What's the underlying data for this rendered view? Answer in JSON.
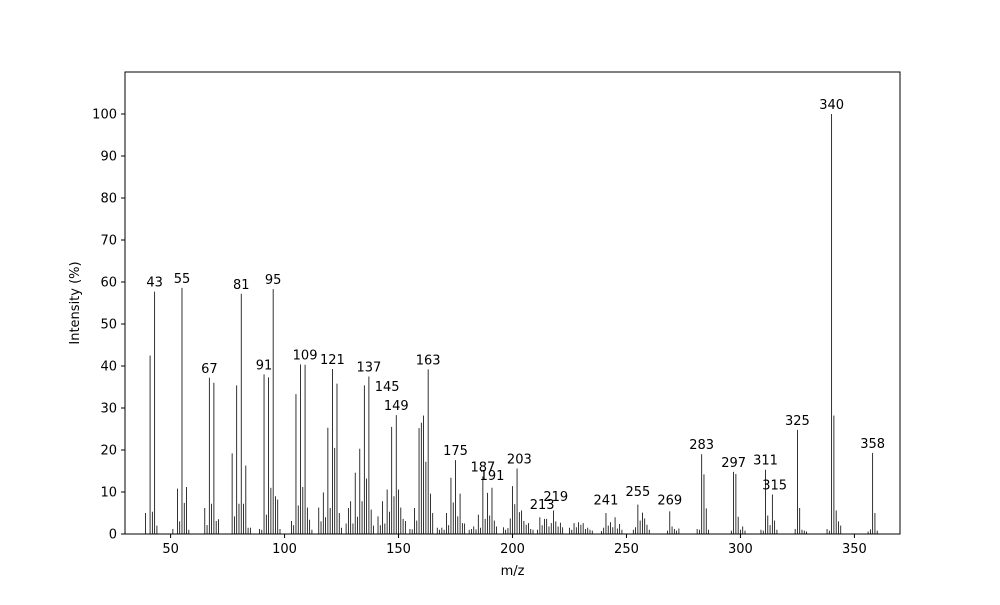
{
  "chart_data": {
    "type": "bar",
    "title": "",
    "xlabel": "m/z",
    "ylabel": "Intensity (%)",
    "xlim": [
      30,
      370
    ],
    "ylim": [
      0,
      110
    ],
    "xticks": [
      50,
      100,
      150,
      200,
      250,
      300,
      350
    ],
    "yticks": [
      0,
      10,
      20,
      30,
      40,
      50,
      60,
      70,
      80,
      90,
      100
    ],
    "grid": false,
    "bar_color": "#000000",
    "peaks": [
      [
        39,
        5
      ],
      [
        41,
        42.5
      ],
      [
        42,
        5.3
      ],
      [
        43,
        57.7
      ],
      [
        44,
        2
      ],
      [
        51,
        1.2
      ],
      [
        53,
        10.8
      ],
      [
        54,
        3
      ],
      [
        55,
        58.6
      ],
      [
        56,
        7.4
      ],
      [
        57,
        11.2
      ],
      [
        58,
        1
      ],
      [
        65,
        6.2
      ],
      [
        66,
        2.1
      ],
      [
        67,
        37.2
      ],
      [
        68,
        7.2
      ],
      [
        69,
        36
      ],
      [
        70,
        3.1
      ],
      [
        71,
        3.5
      ],
      [
        77,
        19.2
      ],
      [
        78,
        4.2
      ],
      [
        79,
        35.4
      ],
      [
        80,
        7.2
      ],
      [
        81,
        57.2
      ],
      [
        82,
        7.2
      ],
      [
        83,
        16.3
      ],
      [
        84,
        1.5
      ],
      [
        85,
        1.5
      ],
      [
        89,
        1.2
      ],
      [
        90,
        1
      ],
      [
        91,
        38
      ],
      [
        92,
        4.6
      ],
      [
        93,
        37.3
      ],
      [
        94,
        11
      ],
      [
        95,
        58.3
      ],
      [
        96,
        9
      ],
      [
        97,
        8.2
      ],
      [
        98,
        1.2
      ],
      [
        103,
        3.1
      ],
      [
        104,
        2.1
      ],
      [
        105,
        33.3
      ],
      [
        106,
        6.8
      ],
      [
        107,
        40.4
      ],
      [
        108,
        11.2
      ],
      [
        109,
        40.3
      ],
      [
        110,
        6.3
      ],
      [
        111,
        3.4
      ],
      [
        112,
        1
      ],
      [
        115,
        6.3
      ],
      [
        116,
        3
      ],
      [
        117,
        9.9
      ],
      [
        118,
        4
      ],
      [
        119,
        25.3
      ],
      [
        120,
        6.2
      ],
      [
        121,
        39.3
      ],
      [
        122,
        20.5
      ],
      [
        123,
        35.8
      ],
      [
        124,
        5
      ],
      [
        125,
        1.5
      ],
      [
        127,
        2.5
      ],
      [
        128,
        6.2
      ],
      [
        129,
        7.8
      ],
      [
        130,
        2.5
      ],
      [
        131,
        14.6
      ],
      [
        132,
        4.1
      ],
      [
        133,
        20.3
      ],
      [
        134,
        7.8
      ],
      [
        135,
        35.4
      ],
      [
        136,
        13.2
      ],
      [
        137,
        37.5
      ],
      [
        138,
        5.8
      ],
      [
        139,
        2
      ],
      [
        141,
        4.2
      ],
      [
        142,
        2.1
      ],
      [
        143,
        7.8
      ],
      [
        144,
        2.5
      ],
      [
        145,
        10.6
      ],
      [
        146,
        5.3
      ],
      [
        147,
        25.5
      ],
      [
        148,
        9
      ],
      [
        149,
        28.3
      ],
      [
        150,
        10.6
      ],
      [
        151,
        6.3
      ],
      [
        152,
        3.6
      ],
      [
        153,
        3.1
      ],
      [
        155,
        1.2
      ],
      [
        156,
        1.1
      ],
      [
        157,
        6.2
      ],
      [
        158,
        3.2
      ],
      [
        159,
        25.2
      ],
      [
        160,
        26.5
      ],
      [
        161,
        28.2
      ],
      [
        162,
        17.2
      ],
      [
        163,
        39.2
      ],
      [
        164,
        9.6
      ],
      [
        165,
        5
      ],
      [
        167,
        1.5
      ],
      [
        168,
        1
      ],
      [
        169,
        1.5
      ],
      [
        170,
        1
      ],
      [
        171,
        5
      ],
      [
        172,
        2.1
      ],
      [
        173,
        13.4
      ],
      [
        174,
        7.5
      ],
      [
        175,
        17.6
      ],
      [
        176,
        4.2
      ],
      [
        177,
        9.6
      ],
      [
        178,
        2.6
      ],
      [
        179,
        2.5
      ],
      [
        181,
        1
      ],
      [
        182,
        1.2
      ],
      [
        183,
        1.8
      ],
      [
        184,
        1.1
      ],
      [
        185,
        4.6
      ],
      [
        186,
        1.5
      ],
      [
        187,
        13.7
      ],
      [
        188,
        3.6
      ],
      [
        189,
        9.8
      ],
      [
        190,
        4.4
      ],
      [
        191,
        11
      ],
      [
        192,
        3.2
      ],
      [
        193,
        1.8
      ],
      [
        196,
        1.6
      ],
      [
        197,
        1
      ],
      [
        198,
        1.4
      ],
      [
        199,
        3.7
      ],
      [
        200,
        11.4
      ],
      [
        201,
        7.1
      ],
      [
        202,
        15.6
      ],
      [
        203,
        5.2
      ],
      [
        204,
        5.6
      ],
      [
        205,
        3.1
      ],
      [
        206,
        2.2
      ],
      [
        207,
        2.6
      ],
      [
        208,
        1.2
      ],
      [
        209,
        1
      ],
      [
        211,
        1
      ],
      [
        212,
        4
      ],
      [
        213,
        2.1
      ],
      [
        214,
        3.6
      ],
      [
        215,
        3.6
      ],
      [
        216,
        1.8
      ],
      [
        217,
        2.6
      ],
      [
        218,
        5.6
      ],
      [
        219,
        3
      ],
      [
        220,
        1.8
      ],
      [
        221,
        2.7
      ],
      [
        222,
        1.6
      ],
      [
        225,
        1.5
      ],
      [
        226,
        1
      ],
      [
        227,
        2.6
      ],
      [
        228,
        1.6
      ],
      [
        229,
        2.8
      ],
      [
        230,
        2.2
      ],
      [
        231,
        2.6
      ],
      [
        232,
        1.2
      ],
      [
        233,
        1.5
      ],
      [
        234,
        1
      ],
      [
        235,
        0.8
      ],
      [
        239,
        0.7
      ],
      [
        240,
        1.5
      ],
      [
        241,
        5
      ],
      [
        242,
        2
      ],
      [
        243,
        2.8
      ],
      [
        244,
        1.6
      ],
      [
        245,
        4
      ],
      [
        246,
        1.3
      ],
      [
        247,
        2.4
      ],
      [
        248,
        1
      ],
      [
        253,
        1
      ],
      [
        254,
        1.6
      ],
      [
        255,
        7
      ],
      [
        256,
        3.2
      ],
      [
        257,
        5.1
      ],
      [
        258,
        3.7
      ],
      [
        259,
        2.2
      ],
      [
        260,
        1
      ],
      [
        268,
        0.8
      ],
      [
        269,
        5.4
      ],
      [
        270,
        1.8
      ],
      [
        271,
        1.2
      ],
      [
        272,
        0.8
      ],
      [
        273,
        1.3
      ],
      [
        281,
        1.2
      ],
      [
        282,
        1
      ],
      [
        283,
        19
      ],
      [
        284,
        14.2
      ],
      [
        285,
        6.1
      ],
      [
        286,
        1
      ],
      [
        296,
        0.8
      ],
      [
        297,
        14.8
      ],
      [
        298,
        14.3
      ],
      [
        299,
        4.1
      ],
      [
        300,
        1
      ],
      [
        301,
        1.8
      ],
      [
        302,
        0.8
      ],
      [
        309,
        1
      ],
      [
        310,
        0.8
      ],
      [
        311,
        15.3
      ],
      [
        312,
        4.4
      ],
      [
        313,
        2.1
      ],
      [
        314,
        9.4
      ],
      [
        315,
        3.2
      ],
      [
        316,
        1
      ],
      [
        324,
        1.2
      ],
      [
        325,
        24.8
      ],
      [
        326,
        6.2
      ],
      [
        327,
        1
      ],
      [
        328,
        0.8
      ],
      [
        329,
        0.6
      ],
      [
        338,
        1.2
      ],
      [
        339,
        0.8
      ],
      [
        340,
        100
      ],
      [
        341,
        28.2
      ],
      [
        342,
        5.6
      ],
      [
        343,
        3
      ],
      [
        344,
        2
      ],
      [
        356,
        0.6
      ],
      [
        357,
        1.1
      ],
      [
        358,
        19.3
      ],
      [
        359,
        5
      ],
      [
        360,
        0.8
      ]
    ],
    "annotations": [
      {
        "x": 43,
        "y": 57.7,
        "label": "43"
      },
      {
        "x": 55,
        "y": 58.6,
        "label": "55"
      },
      {
        "x": 67,
        "y": 37.2,
        "label": "67"
      },
      {
        "x": 81,
        "y": 57.2,
        "label": "81"
      },
      {
        "x": 91,
        "y": 38,
        "label": "91"
      },
      {
        "x": 95,
        "y": 58.3,
        "label": "95"
      },
      {
        "x": 109,
        "y": 40.3,
        "label": "109"
      },
      {
        "x": 121,
        "y": 39.3,
        "label": "121"
      },
      {
        "x": 137,
        "y": 37.5,
        "label": "137"
      },
      {
        "x": 145,
        "y": 32.9,
        "label": "145"
      },
      {
        "x": 149,
        "y": 28.3,
        "label": "149"
      },
      {
        "x": 163,
        "y": 39.2,
        "label": "163"
      },
      {
        "x": 175,
        "y": 17.6,
        "label": "175"
      },
      {
        "x": 187,
        "y": 13.7,
        "label": "187"
      },
      {
        "x": 191,
        "y": 11.7,
        "label": "191"
      },
      {
        "x": 203,
        "y": 15.6,
        "label": "203"
      },
      {
        "x": 213,
        "y": 4.8,
        "label": "213"
      },
      {
        "x": 219,
        "y": 6.7,
        "label": "219"
      },
      {
        "x": 241,
        "y": 5.8,
        "label": "241"
      },
      {
        "x": 255,
        "y": 7.8,
        "label": "255"
      },
      {
        "x": 269,
        "y": 5.8,
        "label": "269"
      },
      {
        "x": 283,
        "y": 19,
        "label": "283"
      },
      {
        "x": 297,
        "y": 14.8,
        "label": "297"
      },
      {
        "x": 311,
        "y": 15.3,
        "label": "311"
      },
      {
        "x": 315,
        "y": 9.4,
        "label": "315"
      },
      {
        "x": 325,
        "y": 24.8,
        "label": "325"
      },
      {
        "x": 340,
        "y": 100,
        "label": "340"
      },
      {
        "x": 358,
        "y": 19.3,
        "label": "358"
      }
    ]
  }
}
